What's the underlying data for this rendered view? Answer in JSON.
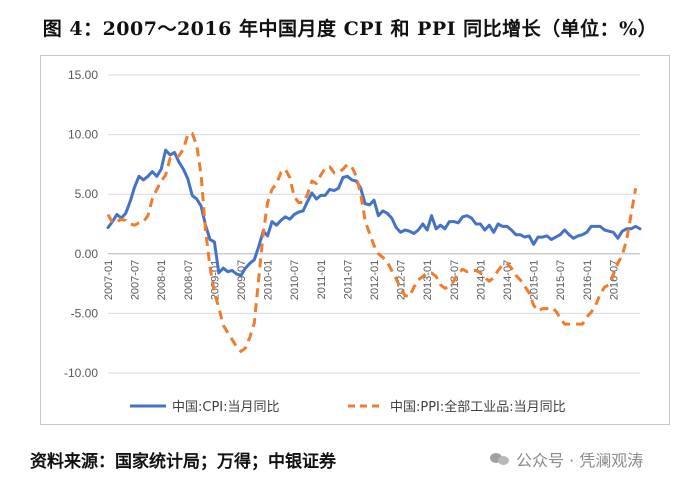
{
  "title": "图 4：2007～2016 年中国月度 CPI 和 PPI 同比增长（单位：%）",
  "source": "资料来源：国家统计局；万得；中银证券",
  "watermark": "公众号 · 凭澜观涛",
  "watermark_icon": "wechat-icon",
  "chart_data": {
    "type": "line",
    "ylim": [
      -10,
      15
    ],
    "yticks": [
      "15.00",
      "10.00",
      "5.00",
      "0.00",
      "-5.00",
      "-10.00"
    ],
    "ytick_values": [
      15,
      10,
      5,
      0,
      -5,
      -10
    ],
    "grid": "horizontal",
    "legend_position": "bottom",
    "x_tick_labels": [
      "2007-01",
      "2007-07",
      "2008-01",
      "2008-07",
      "2009-01",
      "2009-07",
      "2010-01",
      "2010-07",
      "2011-01",
      "2011-07",
      "2012-01",
      "2012-07",
      "2013-01",
      "2013-07",
      "2014-01",
      "2014-07",
      "2015-01",
      "2015-07",
      "2016-01",
      "2016-07"
    ],
    "x_start": "2007-01",
    "series": [
      {
        "name": "中国:CPI:当月同比",
        "color": "#4472C4",
        "style": "solid",
        "values": [
          2.2,
          2.7,
          3.3,
          3.0,
          3.4,
          4.4,
          5.6,
          6.5,
          6.2,
          6.5,
          6.9,
          6.5,
          7.1,
          8.7,
          8.3,
          8.5,
          7.7,
          7.1,
          6.3,
          4.9,
          4.6,
          4.0,
          2.4,
          1.2,
          1.0,
          -1.6,
          -1.2,
          -1.5,
          -1.4,
          -1.7,
          -1.8,
          -1.2,
          -0.8,
          -0.5,
          0.6,
          1.9,
          1.5,
          2.7,
          2.4,
          2.8,
          3.1,
          2.9,
          3.3,
          3.5,
          3.6,
          4.4,
          5.1,
          4.6,
          4.9,
          4.9,
          5.4,
          5.3,
          5.5,
          6.4,
          6.5,
          6.2,
          6.1,
          5.5,
          4.2,
          4.1,
          4.5,
          3.2,
          3.6,
          3.4,
          3.0,
          2.2,
          1.8,
          2.0,
          1.9,
          1.7,
          2.0,
          2.5,
          2.0,
          3.2,
          2.1,
          2.4,
          2.1,
          2.7,
          2.7,
          2.6,
          3.1,
          3.2,
          3.0,
          2.5,
          2.5,
          2.0,
          2.4,
          1.8,
          2.5,
          2.3,
          2.3,
          2.0,
          1.6,
          1.6,
          1.4,
          1.5,
          0.8,
          1.4,
          1.4,
          1.5,
          1.2,
          1.4,
          1.6,
          2.0,
          1.6,
          1.3,
          1.5,
          1.6,
          1.8,
          2.3,
          2.3,
          2.3,
          2.0,
          1.9,
          1.8,
          1.3,
          1.9,
          2.1,
          2.1,
          2.3,
          2.1
        ]
      },
      {
        "name": "中国:PPI:全部工业品:当月同比",
        "color": "#ED7D31",
        "style": "dashed",
        "values": [
          3.3,
          2.6,
          2.7,
          2.9,
          2.8,
          2.5,
          2.4,
          2.6,
          2.7,
          3.2,
          4.6,
          5.4,
          6.1,
          6.6,
          8.0,
          8.1,
          8.2,
          8.8,
          10.0,
          10.1,
          9.1,
          6.6,
          2.0,
          -1.1,
          -3.3,
          -4.5,
          -6.0,
          -6.6,
          -7.2,
          -7.8,
          -8.2,
          -7.9,
          -7.0,
          -5.8,
          -2.1,
          1.7,
          4.3,
          5.4,
          5.9,
          6.8,
          7.1,
          6.4,
          4.8,
          4.3,
          4.3,
          5.0,
          6.1,
          5.9,
          6.6,
          7.2,
          7.3,
          6.8,
          6.8,
          7.1,
          7.5,
          7.3,
          6.5,
          5.0,
          2.8,
          1.7,
          0.7,
          0.0,
          -0.3,
          -0.7,
          -1.4,
          -2.1,
          -2.9,
          -3.5,
          -3.6,
          -2.8,
          -2.2,
          -1.9,
          -1.6,
          -1.6,
          -1.9,
          -2.6,
          -2.9,
          -2.7,
          -2.3,
          -1.6,
          -1.3,
          -1.5,
          -1.4,
          -1.4,
          -1.6,
          -2.0,
          -2.3,
          -2.0,
          -1.4,
          -0.9,
          -0.8,
          -1.2,
          -1.8,
          -2.2,
          -2.7,
          -3.3,
          -4.3,
          -4.8,
          -4.6,
          -4.6,
          -4.5,
          -4.8,
          -5.4,
          -5.9,
          -5.9,
          -5.9,
          -5.9,
          -5.9,
          -5.3,
          -4.9,
          -4.3,
          -3.4,
          -2.8,
          -2.6,
          -1.7,
          -0.8,
          -0.1,
          1.2,
          3.3,
          5.5
        ]
      }
    ]
  }
}
